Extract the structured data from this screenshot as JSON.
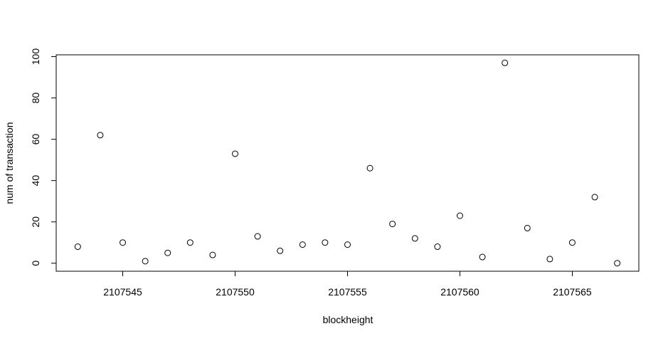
{
  "chart_data": {
    "type": "scatter",
    "x_label": "blockheight",
    "y_label": "num of transaction",
    "x": [
      2107543,
      2107544,
      2107545,
      2107546,
      2107547,
      2107548,
      2107549,
      2107550,
      2107551,
      2107552,
      2107553,
      2107554,
      2107555,
      2107556,
      2107557,
      2107558,
      2107559,
      2107560,
      2107561,
      2107562,
      2107563,
      2107564,
      2107565,
      2107566,
      2107567
    ],
    "values": [
      8,
      62,
      10,
      1,
      5,
      10,
      4,
      53,
      13,
      6,
      9,
      10,
      9,
      46,
      19,
      12,
      8,
      23,
      3,
      97,
      17,
      2,
      10,
      32,
      0
    ],
    "color": "#000000",
    "xlim": [
      2107542.04,
      2107567.96
    ],
    "xticks": [
      2107545,
      2107550,
      2107555,
      2107560,
      2107565
    ],
    "ylim": [
      -3.88,
      100.88
    ],
    "yticks": [
      0,
      20,
      40,
      60,
      80,
      100
    ]
  }
}
